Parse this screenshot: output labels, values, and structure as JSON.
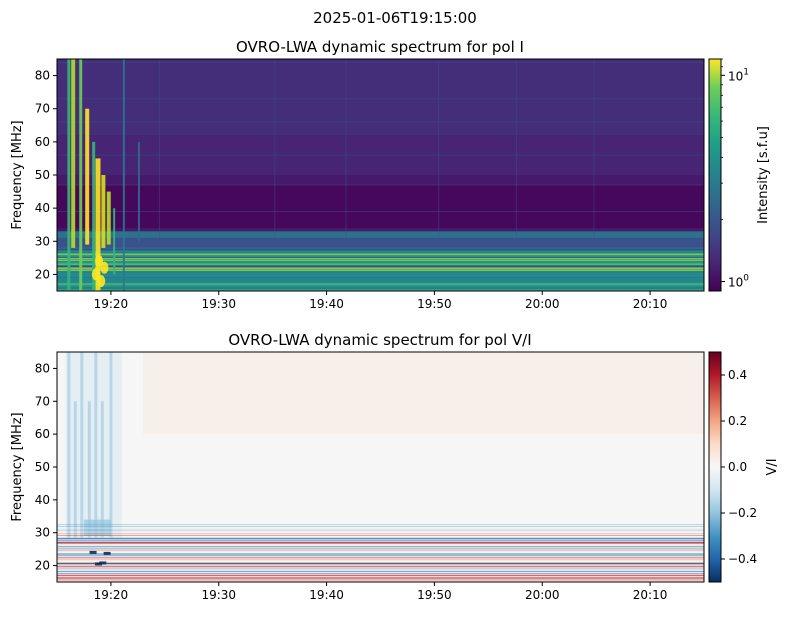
{
  "figure": {
    "suptitle": "2025-01-06T19:15:00"
  },
  "chart_data": [
    {
      "type": "heatmap",
      "title": "OVRO-LWA dynamic spectrum for pol I",
      "xlabel": "",
      "ylabel": "Frequency [MHz]",
      "x_range": [
        "19:15",
        "20:15"
      ],
      "x_ticks": [
        "19:20",
        "19:30",
        "19:40",
        "19:50",
        "20:00",
        "20:10"
      ],
      "ylim": [
        15,
        85
      ],
      "y_ticks": [
        20,
        30,
        40,
        50,
        60,
        70,
        80
      ],
      "colorbar": {
        "label": "Intensity [s.f.u]",
        "scale": "log",
        "range": [
          0.9,
          12
        ],
        "ticks": [
          {
            "value": 1,
            "base": "10",
            "exp": "0"
          },
          {
            "value": 10,
            "base": "10",
            "exp": "1"
          }
        ],
        "colormap": "viridis"
      },
      "features": {
        "bursts_minutes_after_start": [
          1.5,
          2.2,
          2.8,
          3.8,
          4.3,
          4.8
        ],
        "burst_freq_range_mhz": [
          15,
          85
        ],
        "rfi_band_mhz": [
          15,
          33
        ]
      }
    },
    {
      "type": "heatmap",
      "title": "OVRO-LWA dynamic spectrum for pol V/I",
      "xlabel": "",
      "ylabel": "Frequency [MHz]",
      "x_range": [
        "19:15",
        "20:15"
      ],
      "x_ticks": [
        "19:20",
        "19:30",
        "19:40",
        "19:50",
        "20:00",
        "20:10"
      ],
      "ylim": [
        15,
        85
      ],
      "y_ticks": [
        20,
        30,
        40,
        50,
        60,
        70,
        80
      ],
      "colorbar": {
        "label": "V/I",
        "scale": "linear",
        "range": [
          -0.5,
          0.5
        ],
        "ticks": [
          {
            "value": 0.4,
            "text": "0.4"
          },
          {
            "value": 0.2,
            "text": "0.2"
          },
          {
            "value": 0.0,
            "text": "0.0"
          },
          {
            "value": -0.2,
            "text": "−0.2"
          },
          {
            "value": -0.4,
            "text": "−0.4"
          }
        ],
        "colormap": "RdBu_r"
      }
    }
  ]
}
